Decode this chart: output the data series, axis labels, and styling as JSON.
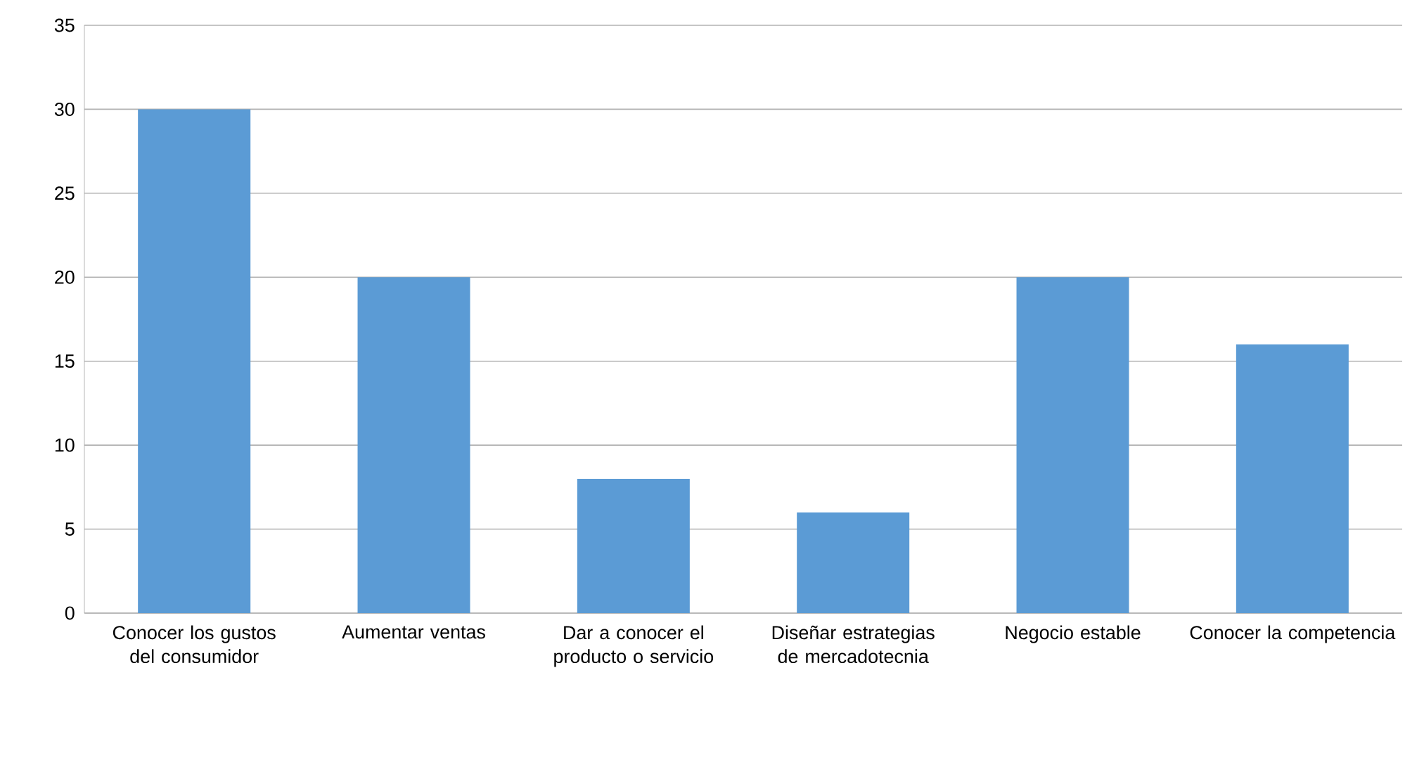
{
  "chart_data": {
    "type": "bar",
    "categories": [
      "Conocer los gustos del consumidor",
      "Aumentar ventas",
      "Dar a conocer el producto o servicio",
      "Diseñar estrategias de mercadotecnia",
      "Negocio estable",
      "Conocer la competencia"
    ],
    "values": [
      30,
      20,
      8,
      6,
      20,
      16
    ],
    "color": "#5b9bd5",
    "ylim": [
      0,
      35
    ],
    "yticks": [
      0,
      5,
      10,
      15,
      20,
      25,
      30,
      35
    ],
    "grid": "y"
  }
}
